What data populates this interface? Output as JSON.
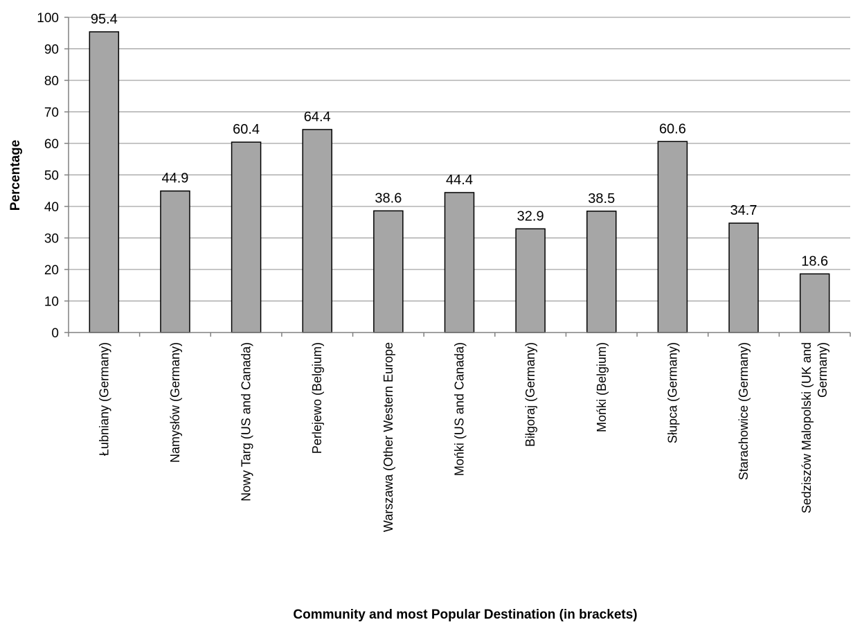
{
  "chart_data": {
    "type": "bar",
    "title": "",
    "xlabel": "Community and most Popular Destination (in brackets)",
    "ylabel": "Percentage",
    "ylim": [
      0,
      100
    ],
    "yticks": [
      0,
      10,
      20,
      30,
      40,
      50,
      60,
      70,
      80,
      90,
      100
    ],
    "grid": "horizontal",
    "bar_color": "#a6a6a6",
    "categories": [
      [
        "Łubniany (Germany)"
      ],
      [
        "Namysłów (Germany)"
      ],
      [
        "Nowy Targ (US and Canada)"
      ],
      [
        "Perlejewo (Belgium)"
      ],
      [
        "Warszawa (Other Western Europe"
      ],
      [
        "Mońki (US and Canada)"
      ],
      [
        "Biłgoraj (Germany)"
      ],
      [
        "Mońki (Belgium)"
      ],
      [
        "Słupca (Germany)"
      ],
      [
        "Starachowice (Germany)"
      ],
      [
        "Sedziszów Malopolski (UK and",
        "Germany)"
      ]
    ],
    "values": [
      95.4,
      44.9,
      60.4,
      64.4,
      38.6,
      44.4,
      32.9,
      38.5,
      60.6,
      34.7,
      18.6
    ],
    "value_labels": [
      "95.4",
      "44.9",
      "60.4",
      "64.4",
      "38.6",
      "44.4",
      "32.9",
      "38.5",
      "60.6",
      "34.7",
      "18.6"
    ]
  }
}
